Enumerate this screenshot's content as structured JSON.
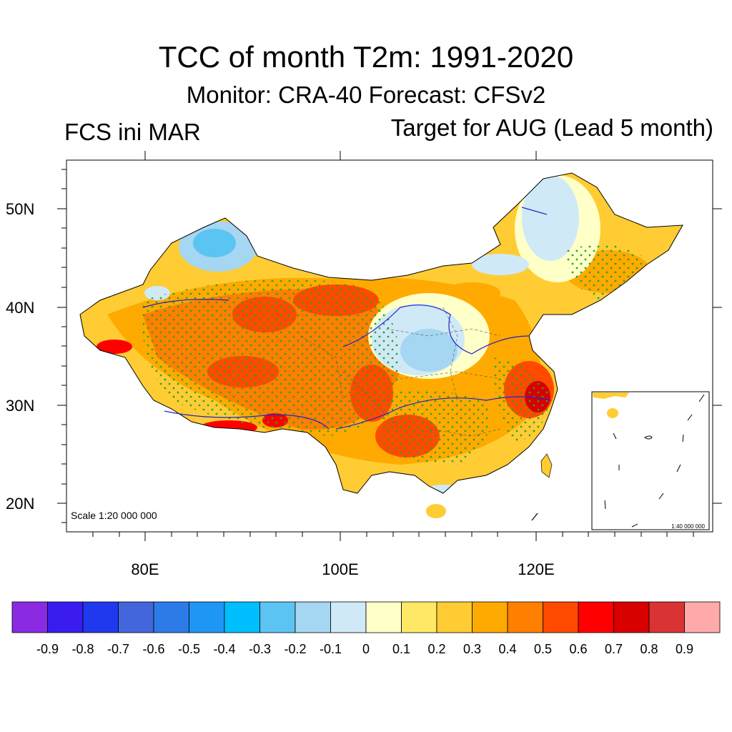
{
  "title": "TCC of month T2m: 1991-2020",
  "subtitle": "Monitor: CRA-40   Forecast: CFSv2",
  "left_label": "FCS ini MAR",
  "right_label": "Target for AUG (Lead 5 month)",
  "map": {
    "scale_label": "Scale 1:20 000 000",
    "inset_scale_label": "1:40 000 000",
    "lat_ticks": [
      "50N",
      "40N",
      "30N",
      "20N"
    ],
    "lon_ticks": [
      "80E",
      "100E",
      "120E"
    ]
  },
  "colorbar": {
    "colors": [
      "#8a2be2",
      "#3a1cf0",
      "#2038ee",
      "#4466dd",
      "#2d7be8",
      "#1e96f5",
      "#00bfff",
      "#5bc4f2",
      "#a5d6f2",
      "#cfe9f7",
      "#ffffc8",
      "#ffe866",
      "#ffcc33",
      "#ffaa00",
      "#ff7f00",
      "#ff4a00",
      "#ff0000",
      "#d90000",
      "#d93333",
      "#ffaaaa"
    ],
    "labels": [
      "-0.9",
      "-0.8",
      "-0.7",
      "-0.6",
      "-0.5",
      "-0.4",
      "-0.3",
      "-0.2",
      "-0.1",
      "0",
      "0.1",
      "0.2",
      "0.3",
      "0.4",
      "0.5",
      "0.6",
      "0.7",
      "0.8",
      "0.9"
    ]
  }
}
